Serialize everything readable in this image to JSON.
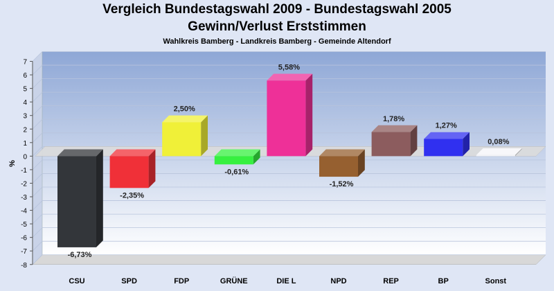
{
  "chart_data": {
    "type": "bar",
    "title": "Vergleich Bundestagswahl 2009 - Bundestagswahl 2005",
    "subtitle": "Gewinn/Verlust Erststimmen",
    "subtitle2": "Wahlkreis Bamberg - Landkreis Bamberg - Gemeinde Altendorf",
    "ylabel": "%",
    "xlabel": "",
    "ylim": [
      -8,
      7
    ],
    "yticks": [
      7,
      6,
      5,
      4,
      3,
      2,
      1,
      0,
      -1,
      -2,
      -3,
      -4,
      -5,
      -6,
      -7,
      -8
    ],
    "grid": true,
    "categories": [
      "CSU",
      "SPD",
      "FDP",
      "GRÜNE",
      "DIE L",
      "NPD",
      "REP",
      "BP",
      "Sonst"
    ],
    "values": [
      -6.73,
      -2.35,
      2.5,
      -0.61,
      5.58,
      -1.52,
      1.78,
      1.27,
      0.08
    ],
    "value_labels": [
      "-6,73%",
      "-2,35%",
      "2,50%",
      "-0,61%",
      "5,58%",
      "-1,52%",
      "1,78%",
      "1,27%",
      "0,08%"
    ],
    "colors": [
      "#33363a",
      "#f03038",
      "#f0f038",
      "#36f040",
      "#ee3098",
      "#966030",
      "#8c5c5e",
      "#3030f0",
      "#f4f4f8"
    ]
  }
}
